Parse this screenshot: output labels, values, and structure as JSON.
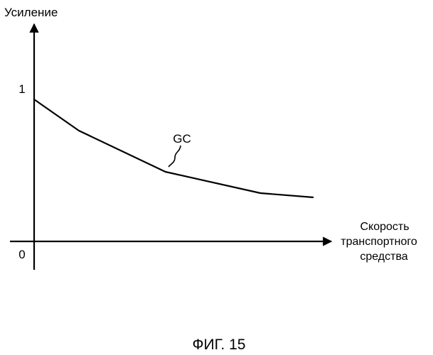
{
  "chart_data": {
    "type": "line",
    "ylabel": "Усиление",
    "xlabel": [
      "Скорость",
      "транспортного",
      "средства"
    ],
    "y_ticks": [
      {
        "value": 0,
        "label": "0"
      },
      {
        "value": 1,
        "label": "1"
      }
    ],
    "ylim": [
      0,
      1.52
    ],
    "xlim": [
      0,
      10
    ],
    "series": [
      {
        "name": "GC",
        "x": [
          0,
          1.6,
          4.7,
          8.1,
          10
        ],
        "y": [
          1.0,
          0.78,
          0.49,
          0.34,
          0.31
        ]
      }
    ],
    "grid": false,
    "legend": "none"
  },
  "caption": "ФИГ. 15",
  "colors": {
    "ink": "#000000",
    "background": "#ffffff"
  }
}
